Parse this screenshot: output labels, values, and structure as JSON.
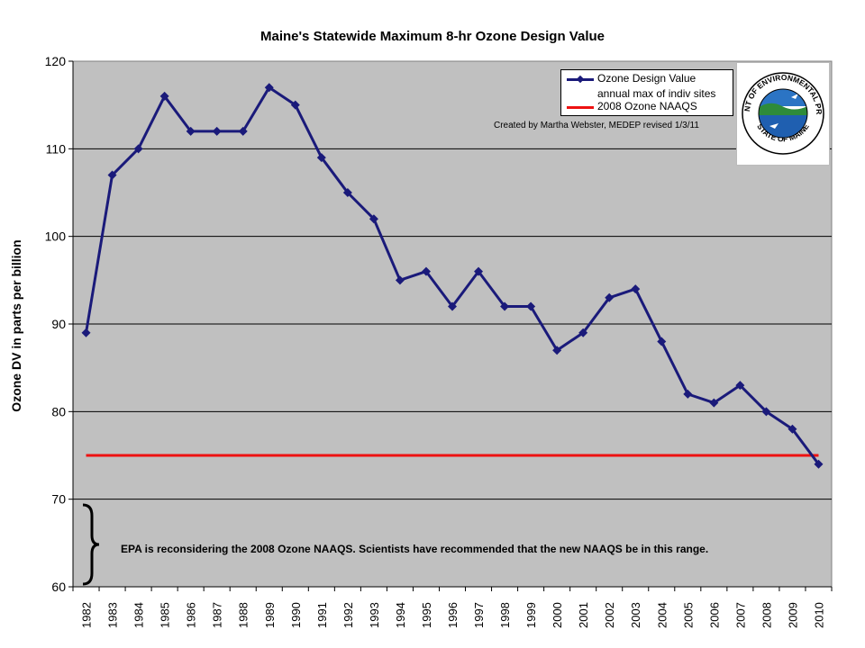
{
  "chart_data": {
    "type": "line",
    "title": "Maine's Statewide Maximum 8-hr Ozone Design Value",
    "ylabel": "Ozone DV in parts per billion",
    "xlabel": "",
    "ylim": [
      60,
      120
    ],
    "yticks": [
      60,
      70,
      80,
      90,
      100,
      110,
      120
    ],
    "grid": true,
    "legend_position": "top-right",
    "categories": [
      "1982",
      "1983",
      "1984",
      "1985",
      "1986",
      "1987",
      "1988",
      "1989",
      "1990",
      "1991",
      "1992",
      "1993",
      "1994",
      "1995",
      "1996",
      "1997",
      "1998",
      "1999",
      "2000",
      "2001",
      "2002",
      "2003",
      "2004",
      "2005",
      "2006",
      "2007",
      "2008",
      "2009",
      "2010"
    ],
    "series": [
      {
        "name": "Ozone Design Value",
        "values": [
          89,
          107,
          110,
          116,
          112,
          112,
          112,
          117,
          115,
          109,
          105,
          102,
          95,
          96,
          92,
          96,
          92,
          92,
          87,
          89,
          93,
          94,
          88,
          82,
          81,
          83,
          80,
          78,
          74
        ],
        "color": "#1a1a7a"
      },
      {
        "name": "2008 Ozone NAAQS",
        "values": [
          75,
          75,
          75,
          75,
          75,
          75,
          75,
          75,
          75,
          75,
          75,
          75,
          75,
          75,
          75,
          75,
          75,
          75,
          75,
          75,
          75,
          75,
          75,
          75,
          75,
          75,
          75,
          75,
          75
        ],
        "color": "#ee1111"
      }
    ],
    "legend_subtitle": "annual max of indiv sites",
    "annotation": "Created by Martha Webster, MEDEP revised 1/3/11",
    "note": "EPA is reconsidering the 2008 Ozone NAAQS.  Scientists have recommended that the new NAAQS be in this range.",
    "note_range": [
      60,
      70
    ],
    "logo": {
      "top_text": "DEPARTMENT OF ENVIRONMENTAL PROTECTION",
      "bottom_text": "STATE OF MAINE"
    },
    "colors": {
      "plot_background": "#c0c0c0",
      "gridline": "#000000"
    }
  }
}
